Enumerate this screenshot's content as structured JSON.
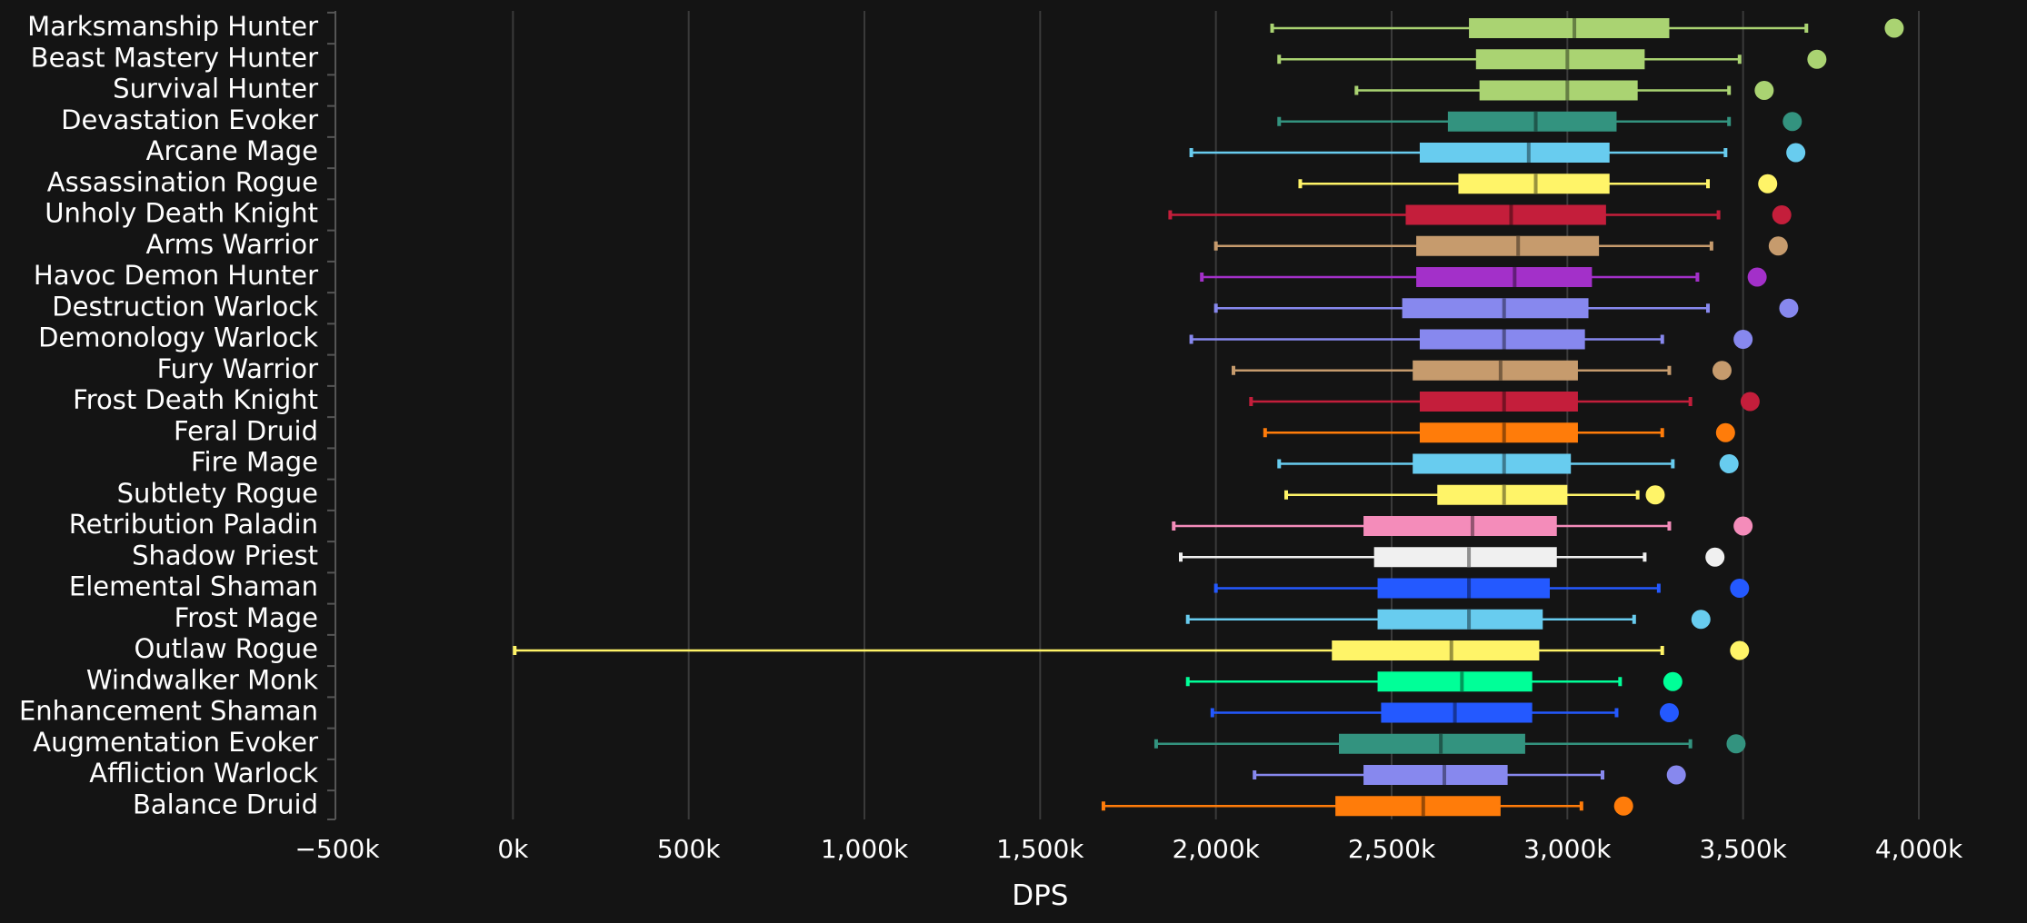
{
  "chart_data": {
    "type": "box",
    "orientation": "horizontal",
    "xlabel": "DPS",
    "ylabel": "",
    "title": "",
    "xlim": [
      -500000,
      4000000
    ],
    "xticks": [
      -500000,
      0,
      500000,
      1000000,
      1500000,
      2000000,
      2500000,
      3000000,
      3500000,
      4000000
    ],
    "xtick_labels": [
      "−500k",
      "0k",
      "500k",
      "1,000k",
      "1,500k",
      "2,000k",
      "2,500k",
      "3,000k",
      "3,500k",
      "4,000k"
    ],
    "grid": true,
    "categories": [
      "Marksmanship Hunter",
      "Beast Mastery Hunter",
      "Survival Hunter",
      "Devastation Evoker",
      "Arcane Mage",
      "Assassination Rogue",
      "Unholy Death Knight",
      "Arms Warrior",
      "Havoc Demon Hunter",
      "Destruction Warlock",
      "Demonology Warlock",
      "Fury Warrior",
      "Frost Death Knight",
      "Feral Druid",
      "Fire Mage",
      "Subtlety Rogue",
      "Retribution Paladin",
      "Shadow Priest",
      "Elemental Shaman",
      "Frost Mage",
      "Outlaw Rogue",
      "Windwalker Monk",
      "Enhancement Shaman",
      "Augmentation Evoker",
      "Affliction Warlock",
      "Balance Druid"
    ],
    "boxes": [
      {
        "min": 2160000,
        "q1": 2720000,
        "median": 3020000,
        "q3": 3290000,
        "max": 3680000,
        "outlier": 3930000,
        "color": "#aad372"
      },
      {
        "min": 2180000,
        "q1": 2740000,
        "median": 3000000,
        "q3": 3220000,
        "max": 3490000,
        "outlier": 3710000,
        "color": "#aad372"
      },
      {
        "min": 2400000,
        "q1": 2750000,
        "median": 3000000,
        "q3": 3200000,
        "max": 3460000,
        "outlier": 3560000,
        "color": "#aad372"
      },
      {
        "min": 2180000,
        "q1": 2660000,
        "median": 2910000,
        "q3": 3140000,
        "max": 3460000,
        "outlier": 3640000,
        "color": "#33937f"
      },
      {
        "min": 1930000,
        "q1": 2580000,
        "median": 2890000,
        "q3": 3120000,
        "max": 3450000,
        "outlier": 3650000,
        "color": "#68ccef"
      },
      {
        "min": 2240000,
        "q1": 2690000,
        "median": 2910000,
        "q3": 3120000,
        "max": 3400000,
        "outlier": 3570000,
        "color": "#fff468"
      },
      {
        "min": 1870000,
        "q1": 2540000,
        "median": 2840000,
        "q3": 3110000,
        "max": 3430000,
        "outlier": 3610000,
        "color": "#c41e3b"
      },
      {
        "min": 2000000,
        "q1": 2570000,
        "median": 2860000,
        "q3": 3090000,
        "max": 3410000,
        "outlier": 3600000,
        "color": "#c69b6d"
      },
      {
        "min": 1960000,
        "q1": 2570000,
        "median": 2850000,
        "q3": 3070000,
        "max": 3370000,
        "outlier": 3540000,
        "color": "#a330c9"
      },
      {
        "min": 2000000,
        "q1": 2530000,
        "median": 2820000,
        "q3": 3060000,
        "max": 3400000,
        "outlier": 3630000,
        "color": "#8788ee"
      },
      {
        "min": 1930000,
        "q1": 2580000,
        "median": 2820000,
        "q3": 3050000,
        "max": 3270000,
        "outlier": 3500000,
        "color": "#8788ee"
      },
      {
        "min": 2050000,
        "q1": 2560000,
        "median": 2810000,
        "q3": 3030000,
        "max": 3290000,
        "outlier": 3440000,
        "color": "#c69b6d"
      },
      {
        "min": 2100000,
        "q1": 2580000,
        "median": 2820000,
        "q3": 3030000,
        "max": 3350000,
        "outlier": 3520000,
        "color": "#c41e3b"
      },
      {
        "min": 2140000,
        "q1": 2580000,
        "median": 2820000,
        "q3": 3030000,
        "max": 3270000,
        "outlier": 3450000,
        "color": "#ff7c0a"
      },
      {
        "min": 2180000,
        "q1": 2560000,
        "median": 2820000,
        "q3": 3010000,
        "max": 3300000,
        "outlier": 3460000,
        "color": "#68ccef"
      },
      {
        "min": 2200000,
        "q1": 2630000,
        "median": 2820000,
        "q3": 3000000,
        "max": 3200000,
        "outlier": 3250000,
        "color": "#fff468"
      },
      {
        "min": 1880000,
        "q1": 2420000,
        "median": 2730000,
        "q3": 2970000,
        "max": 3290000,
        "outlier": 3500000,
        "color": "#f48cba"
      },
      {
        "min": 1900000,
        "q1": 2450000,
        "median": 2720000,
        "q3": 2970000,
        "max": 3220000,
        "outlier": 3420000,
        "color": "#f0f0f0"
      },
      {
        "min": 2000000,
        "q1": 2460000,
        "median": 2720000,
        "q3": 2950000,
        "max": 3260000,
        "outlier": 3490000,
        "color": "#2459ff"
      },
      {
        "min": 1920000,
        "q1": 2460000,
        "median": 2720000,
        "q3": 2930000,
        "max": 3190000,
        "outlier": 3380000,
        "color": "#68ccef"
      },
      {
        "min": 5000,
        "q1": 2330000,
        "median": 2670000,
        "q3": 2920000,
        "max": 3270000,
        "outlier": 3490000,
        "color": "#fff468"
      },
      {
        "min": 1920000,
        "q1": 2460000,
        "median": 2700000,
        "q3": 2900000,
        "max": 3150000,
        "outlier": 3300000,
        "color": "#00ff98"
      },
      {
        "min": 1990000,
        "q1": 2470000,
        "median": 2680000,
        "q3": 2900000,
        "max": 3140000,
        "outlier": 3290000,
        "color": "#2459ff"
      },
      {
        "min": 1830000,
        "q1": 2350000,
        "median": 2640000,
        "q3": 2880000,
        "max": 3350000,
        "outlier": 3480000,
        "color": "#33937f"
      },
      {
        "min": 2110000,
        "q1": 2420000,
        "median": 2650000,
        "q3": 2830000,
        "max": 3100000,
        "outlier": 3310000,
        "color": "#8788ee"
      },
      {
        "min": 1680000,
        "q1": 2340000,
        "median": 2590000,
        "q3": 2810000,
        "max": 3040000,
        "outlier": 3160000,
        "color": "#ff7c0a"
      }
    ]
  }
}
